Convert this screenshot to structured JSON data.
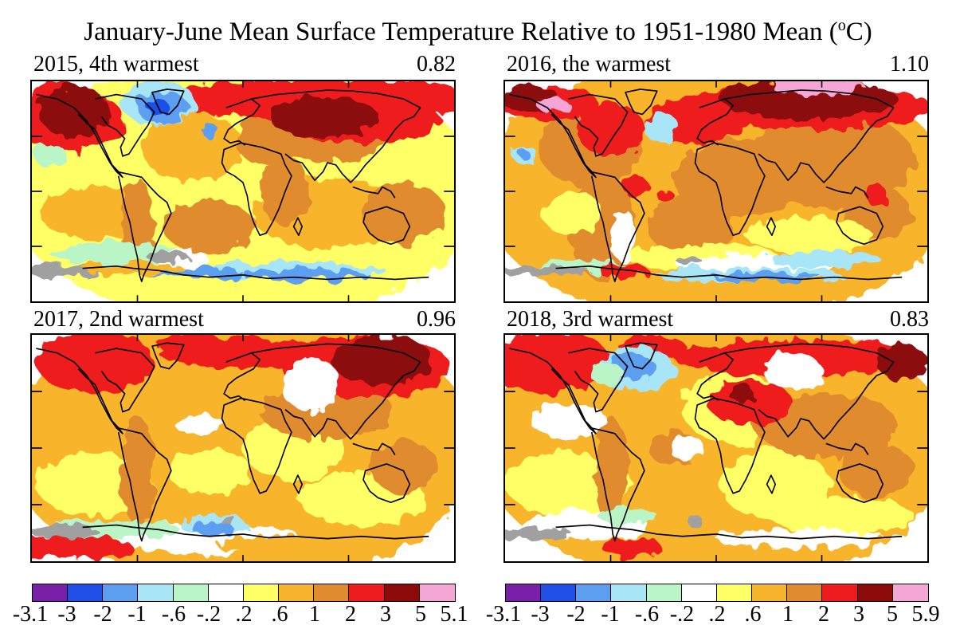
{
  "title": {
    "text": "January-June Mean Surface Temperature Relative to 1951-1980 Mean (",
    "sup": "o",
    "unit": "C)"
  },
  "colors": {
    "palette": [
      "#7a1fa8",
      "#1f4fe6",
      "#5c9ef0",
      "#a8e6f7",
      "#b9f5c6",
      "#ffffff",
      "#ffff66",
      "#f8b42c",
      "#e08b2e",
      "#ee1c1c",
      "#8c0a0a",
      "#f4a6d6"
    ],
    "missing": "#a0a0a0",
    "coast": "#000000"
  },
  "panels": [
    {
      "label": "2015, 4th warmest",
      "value": "0.82"
    },
    {
      "label": "2016, the warmest",
      "value": "1.10"
    },
    {
      "label": "2017, 2nd warmest",
      "value": "0.96"
    },
    {
      "label": "2018, 3rd warmest",
      "value": "0.83"
    }
  ],
  "colorbars": [
    {
      "ticks": [
        "-3.1",
        "-3",
        "-2",
        "-1",
        "-.6",
        "-.2",
        ".2",
        ".6",
        "1",
        "2",
        "3",
        "5",
        "5.1"
      ]
    },
    {
      "ticks": [
        "-3.1",
        "-3",
        "-2",
        "-1",
        "-.6",
        "-.2",
        ".2",
        ".6",
        "1",
        "2",
        "3",
        "5",
        "5.9"
      ]
    }
  ]
}
